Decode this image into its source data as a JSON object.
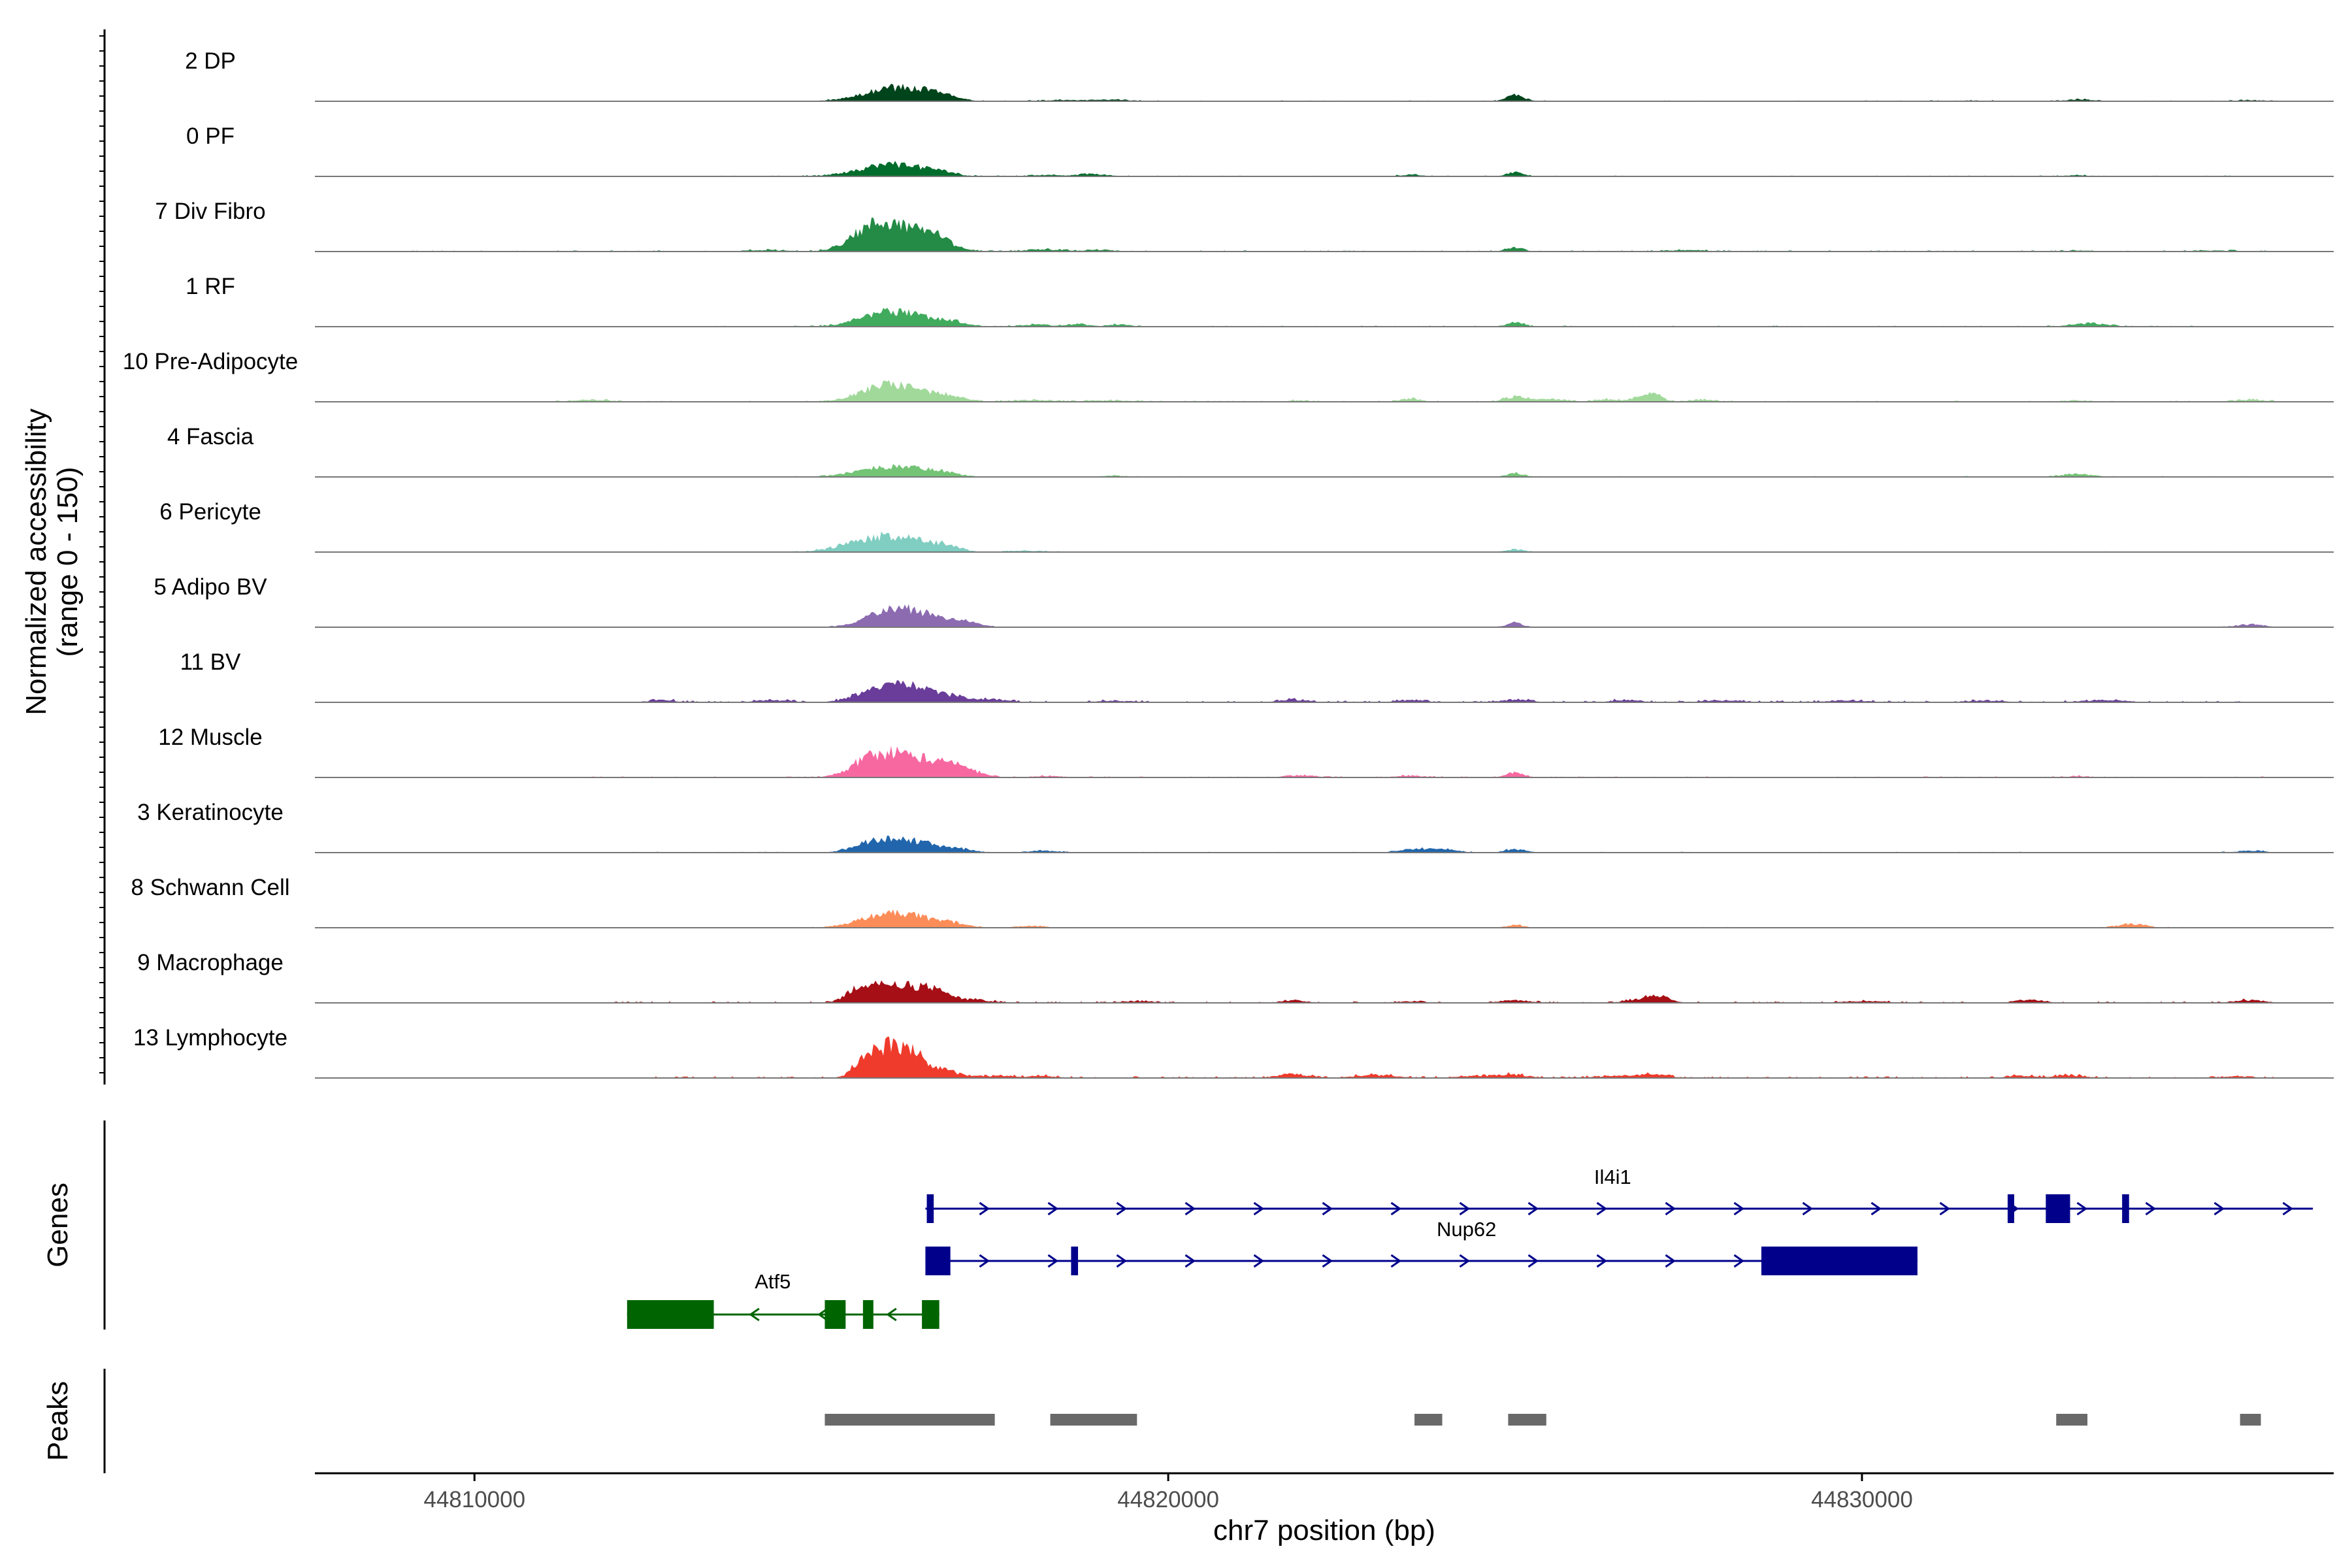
{
  "chart_data": {
    "type": "area",
    "chromosome": "chr7",
    "region": [
      44807700,
      44836800
    ],
    "xlabel": "chr7 position (bp)",
    "ylabel_line1": "Normalized accessibility",
    "ylabel_line2": "(range 0 - 150)",
    "y_range": [
      0,
      150
    ],
    "x_ticks": [
      {
        "value": 44810000,
        "label": "44810000"
      },
      {
        "value": 44820000,
        "label": "44820000"
      },
      {
        "value": 44830000,
        "label": "44830000"
      }
    ],
    "tracks": [
      {
        "label": "2 DP",
        "color": "#00441b",
        "peaks": [
          [
            44816100,
            40,
            450
          ],
          [
            44816700,
            12,
            200
          ],
          [
            44818500,
            3,
            300
          ],
          [
            44819200,
            4,
            300
          ],
          [
            44825000,
            18,
            120
          ],
          [
            44831500,
            2,
            300
          ],
          [
            44833100,
            5,
            200
          ],
          [
            44835600,
            3,
            200
          ]
        ],
        "noise_range": [
          44815000,
          44836000
        ],
        "noise": 1.5
      },
      {
        "label": "0 PF",
        "color": "#006d2c",
        "peaks": [
          [
            44816000,
            35,
            450
          ],
          [
            44816700,
            10,
            200
          ],
          [
            44818200,
            4,
            200
          ],
          [
            44818900,
            7,
            220
          ],
          [
            44823500,
            5,
            150
          ],
          [
            44825000,
            12,
            120
          ],
          [
            44833100,
            3,
            200
          ]
        ],
        "noise_range": [
          44813500,
          44836000
        ],
        "noise": 1.5
      },
      {
        "label": "7 Div Fibro",
        "color": "#238b45",
        "peaks": [
          [
            44815700,
            40,
            300
          ],
          [
            44816100,
            60,
            400
          ],
          [
            44816600,
            30,
            250
          ],
          [
            44814200,
            4,
            300
          ],
          [
            44818200,
            6,
            250
          ],
          [
            44819000,
            5,
            200
          ],
          [
            44825000,
            12,
            120
          ],
          [
            44827500,
            4,
            300
          ],
          [
            44833100,
            3,
            200
          ],
          [
            44835000,
            3,
            300
          ]
        ],
        "noise_range": [
          44809000,
          44836000
        ],
        "noise": 2
      },
      {
        "label": "1 RF",
        "color": "#41ab5d",
        "peaks": [
          [
            44815800,
            28,
            350
          ],
          [
            44816300,
            30,
            350
          ],
          [
            44816900,
            12,
            200
          ],
          [
            44818100,
            6,
            200
          ],
          [
            44818700,
            8,
            150
          ],
          [
            44819300,
            6,
            150
          ],
          [
            44825000,
            12,
            120
          ],
          [
            44833300,
            10,
            250
          ]
        ],
        "noise_range": [
          44813000,
          44836000
        ],
        "noise": 1.8
      },
      {
        "label": "10 Pre-Adipocyte",
        "color": "#a1d99b",
        "peaks": [
          [
            44816000,
            50,
            400
          ],
          [
            44816800,
            15,
            250
          ],
          [
            44811700,
            6,
            250
          ],
          [
            44818000,
            5,
            300
          ],
          [
            44819200,
            4,
            300
          ],
          [
            44821900,
            4,
            150
          ],
          [
            44823500,
            8,
            150
          ],
          [
            44825000,
            15,
            150
          ],
          [
            44825500,
            8,
            200
          ],
          [
            44826300,
            7,
            150
          ],
          [
            44826800,
            12,
            150
          ],
          [
            44827000,
            20,
            130
          ],
          [
            44827700,
            5,
            200
          ],
          [
            44833100,
            3,
            200
          ],
          [
            44835600,
            6,
            200
          ]
        ],
        "noise_range": [
          44811000,
          44836000
        ],
        "noise": 2
      },
      {
        "label": "4 Fascia",
        "color": "#74c476",
        "peaks": [
          [
            44816000,
            30,
            450
          ],
          [
            44816700,
            10,
            250
          ],
          [
            44825000,
            10,
            120
          ],
          [
            44833100,
            8,
            220
          ],
          [
            44819200,
            3,
            250
          ]
        ],
        "noise_range": [
          44813000,
          44836000
        ],
        "noise": 1.5
      },
      {
        "label": "6 Pericyte",
        "color": "#80cdc1",
        "peaks": [
          [
            44815700,
            35,
            400
          ],
          [
            44816300,
            28,
            350
          ],
          [
            44816800,
            12,
            200
          ],
          [
            44818000,
            4,
            250
          ],
          [
            44825000,
            8,
            120
          ]
        ],
        "noise_range": [
          44812500,
          44836000
        ],
        "noise": 1.3
      },
      {
        "label": "5 Adipo BV",
        "color": "#8c6bb1",
        "peaks": [
          [
            44816000,
            50,
            350
          ],
          [
            44816600,
            25,
            300
          ],
          [
            44817100,
            10,
            200
          ],
          [
            44825000,
            12,
            120
          ],
          [
            44835600,
            8,
            200
          ]
        ],
        "noise_range": [
          44813500,
          44836000
        ],
        "noise": 1.2
      },
      {
        "label": "11 BV",
        "color": "#6a3d9a",
        "peaks": [
          [
            44815800,
            35,
            300
          ],
          [
            44816300,
            40,
            300
          ],
          [
            44816900,
            15,
            250
          ],
          [
            44817500,
            8,
            200
          ],
          [
            44812700,
            6,
            200
          ],
          [
            44814300,
            6,
            250
          ],
          [
            44819200,
            4,
            300
          ],
          [
            44821800,
            7,
            200
          ],
          [
            44823500,
            6,
            200
          ],
          [
            44825000,
            8,
            200
          ],
          [
            44826600,
            6,
            200
          ],
          [
            44828000,
            5,
            300
          ],
          [
            44829800,
            5,
            300
          ],
          [
            44831800,
            5,
            300
          ],
          [
            44833500,
            6,
            300
          ]
        ],
        "noise_range": [
          44812500,
          44835600
        ],
        "noise": 3
      },
      {
        "label": "12 Muscle",
        "color": "#f768a1",
        "peaks": [
          [
            44815600,
            30,
            250
          ],
          [
            44816000,
            55,
            300
          ],
          [
            44816500,
            40,
            300
          ],
          [
            44817000,
            25,
            250
          ],
          [
            44818300,
            4,
            200
          ],
          [
            44821900,
            6,
            200
          ],
          [
            44823500,
            5,
            200
          ],
          [
            44825000,
            15,
            120
          ],
          [
            44833100,
            3,
            200
          ]
        ],
        "noise_range": [
          44811500,
          44836000
        ],
        "noise": 1.8
      },
      {
        "label": "3 Keratinocyte",
        "color": "#2166ac",
        "peaks": [
          [
            44815800,
            30,
            300
          ],
          [
            44816300,
            28,
            300
          ],
          [
            44816900,
            12,
            250
          ],
          [
            44818200,
            5,
            250
          ],
          [
            44823500,
            8,
            200
          ],
          [
            44823900,
            10,
            220
          ],
          [
            44825000,
            10,
            150
          ],
          [
            44835600,
            5,
            200
          ]
        ],
        "noise_range": [
          44810500,
          44836000
        ],
        "noise": 1.5
      },
      {
        "label": "8 Schwann Cell",
        "color": "#fc8d59",
        "peaks": [
          [
            44815800,
            25,
            350
          ],
          [
            44816300,
            30,
            350
          ],
          [
            44816900,
            10,
            200
          ],
          [
            44818000,
            5,
            200
          ],
          [
            44825000,
            8,
            120
          ],
          [
            44833900,
            10,
            200
          ]
        ],
        "noise_range": [
          44812500,
          44836000
        ],
        "noise": 1.3
      },
      {
        "label": "9 Macrophage",
        "color": "#a50f15",
        "peaks": [
          [
            44815600,
            45,
            200
          ],
          [
            44816000,
            40,
            250
          ],
          [
            44816400,
            30,
            200
          ],
          [
            44816700,
            25,
            200
          ],
          [
            44817200,
            8,
            250
          ],
          [
            44819500,
            4,
            300
          ],
          [
            44821800,
            5,
            200
          ],
          [
            44823500,
            4,
            200
          ],
          [
            44825000,
            8,
            200
          ],
          [
            44826800,
            10,
            200
          ],
          [
            44827100,
            16,
            150
          ],
          [
            44830000,
            5,
            300
          ],
          [
            44832400,
            9,
            200
          ],
          [
            44835600,
            8,
            200
          ]
        ],
        "noise_range": [
          44812000,
          44836000
        ],
        "noise": 2.5
      },
      {
        "label": "13 Lymphocyte",
        "color": "#ef3b2c",
        "peaks": [
          [
            44815600,
            35,
            150
          ],
          [
            44816000,
            90,
            250
          ],
          [
            44816400,
            40,
            200
          ],
          [
            44816800,
            18,
            200
          ],
          [
            44817500,
            6,
            250
          ],
          [
            44818200,
            5,
            200
          ],
          [
            44821800,
            12,
            200
          ],
          [
            44823000,
            8,
            300
          ],
          [
            44824500,
            6,
            300
          ],
          [
            44825000,
            8,
            200
          ],
          [
            44826500,
            6,
            300
          ],
          [
            44827000,
            9,
            200
          ],
          [
            44832300,
            6,
            200
          ],
          [
            44833000,
            8,
            200
          ],
          [
            44835400,
            5,
            200
          ]
        ],
        "noise_range": [
          44812500,
          44836000
        ],
        "noise": 3
      }
    ],
    "genes_label": "Genes",
    "genes": [
      {
        "name": "Il4i1",
        "strand": "+",
        "color": "#00008b",
        "row": 0,
        "start": 44816500,
        "end": 44836500,
        "exons": [
          [
            44816520,
            44816620
          ],
          [
            44832100,
            44832150
          ],
          [
            44832650,
            44833000
          ],
          [
            44833750,
            44833850
          ]
        ]
      },
      {
        "name": "Nup62",
        "strand": "+",
        "color": "#00008b",
        "row": 1,
        "start": 44816500,
        "end": 44830800,
        "exons": [
          [
            44816500,
            44816860
          ],
          [
            44818600,
            44818700
          ],
          [
            44828550,
            44830800
          ]
        ]
      },
      {
        "name": "Atf5",
        "strand": "-",
        "color": "#006400",
        "row": 2,
        "start": 44812200,
        "end": 44816700,
        "exons": [
          [
            44812200,
            44813450
          ],
          [
            44815050,
            44815350
          ],
          [
            44815600,
            44815750
          ],
          [
            44816450,
            44816700
          ]
        ]
      }
    ],
    "peaks_label": "Peaks",
    "peak_regions": [
      [
        44815050,
        44817500
      ],
      [
        44818300,
        44819550
      ],
      [
        44823550,
        44823950
      ],
      [
        44824900,
        44825450
      ],
      [
        44832800,
        44833250
      ],
      [
        44835450,
        44835750
      ]
    ]
  }
}
